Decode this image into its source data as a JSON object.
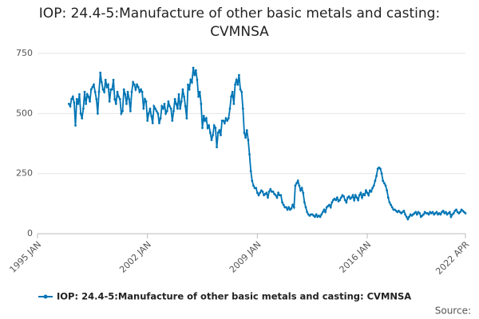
{
  "chart_data": {
    "type": "line",
    "title": "IOP: 24.4-5:Manufacture of other basic metals and casting: CVMNSA",
    "source": "Source:",
    "xlim": [
      "1995 JAN",
      "2022 APR"
    ],
    "xticks": [
      "1995 JAN",
      "2002 JAN",
      "2009 JAN",
      "2016 JAN",
      "2022 APR"
    ],
    "ylim": [
      0,
      750
    ],
    "yticks": [
      0,
      250,
      500,
      750
    ],
    "grid": true,
    "x": [
      "1997 JAN",
      "1997 FEB",
      "1997 MAR",
      "1997 APR",
      "1997 MAY",
      "1997 JUN",
      "1997 JUL",
      "1997 AUG",
      "1997 SEP",
      "1997 OCT",
      "1997 NOV",
      "1997 DEC",
      "1998 JAN",
      "1998 FEB",
      "1998 MAR",
      "1998 APR",
      "1998 MAY",
      "1998 JUN",
      "1998 JUL",
      "1998 AUG",
      "1998 SEP",
      "1998 OCT",
      "1998 NOV",
      "1998 DEC",
      "1999 JAN",
      "1999 FEB",
      "1999 MAR",
      "1999 APR",
      "1999 MAY",
      "1999 JUN",
      "1999 JUL",
      "1999 AUG",
      "1999 SEP",
      "1999 OCT",
      "1999 NOV",
      "1999 DEC",
      "2000 JAN",
      "2000 FEB",
      "2000 MAR",
      "2000 APR",
      "2000 MAY",
      "2000 JUN",
      "2000 JUL",
      "2000 AUG",
      "2000 SEP",
      "2000 OCT",
      "2000 NOV",
      "2000 DEC",
      "2001 JAN",
      "2001 FEB",
      "2001 MAR",
      "2001 APR",
      "2001 MAY",
      "2001 JUN",
      "2001 JUL",
      "2001 AUG",
      "2001 SEP",
      "2001 OCT",
      "2001 NOV",
      "2001 DEC",
      "2002 JAN",
      "2002 FEB",
      "2002 MAR",
      "2002 APR",
      "2002 MAY",
      "2002 JUN",
      "2002 JUL",
      "2002 AUG",
      "2002 SEP",
      "2002 OCT",
      "2002 NOV",
      "2002 DEC",
      "2003 JAN",
      "2003 FEB",
      "2003 MAR",
      "2003 APR",
      "2003 MAY",
      "2003 JUN",
      "2003 JUL",
      "2003 AUG",
      "2003 SEP",
      "2003 OCT",
      "2003 NOV",
      "2003 DEC",
      "2004 JAN",
      "2004 FEB",
      "2004 MAR",
      "2004 APR",
      "2004 MAY",
      "2004 JUN",
      "2004 JUL",
      "2004 AUG",
      "2004 SEP",
      "2004 OCT",
      "2004 NOV",
      "2004 DEC",
      "2005 JAN",
      "2005 FEB",
      "2005 MAR",
      "2005 APR",
      "2005 MAY",
      "2005 JUN",
      "2005 JUL",
      "2005 AUG",
      "2005 SEP",
      "2005 OCT",
      "2005 NOV",
      "2005 DEC",
      "2006 JAN",
      "2006 FEB",
      "2006 MAR",
      "2006 APR",
      "2006 MAY",
      "2006 JUN",
      "2006 JUL",
      "2006 AUG",
      "2006 SEP",
      "2006 OCT",
      "2006 NOV",
      "2006 DEC",
      "2007 JAN",
      "2007 FEB",
      "2007 MAR",
      "2007 APR",
      "2007 MAY",
      "2007 JUN",
      "2007 JUL",
      "2007 AUG",
      "2007 SEP",
      "2007 OCT",
      "2007 NOV",
      "2007 DEC",
      "2008 JAN",
      "2008 FEB",
      "2008 MAR",
      "2008 APR",
      "2008 MAY",
      "2008 JUN",
      "2008 JUL",
      "2008 AUG",
      "2008 SEP",
      "2008 OCT",
      "2008 NOV",
      "2008 DEC",
      "2009 JAN",
      "2009 FEB",
      "2009 MAR",
      "2009 APR",
      "2009 MAY",
      "2009 JUN",
      "2009 JUL",
      "2009 AUG",
      "2009 SEP",
      "2009 OCT",
      "2009 NOV",
      "2009 DEC",
      "2010 JAN",
      "2010 FEB",
      "2010 MAR",
      "2010 APR",
      "2010 MAY",
      "2010 JUN",
      "2010 JUL",
      "2010 AUG",
      "2010 SEP",
      "2010 OCT",
      "2010 NOV",
      "2010 DEC",
      "2011 JAN",
      "2011 FEB",
      "2011 MAR",
      "2011 APR",
      "2011 MAY",
      "2011 JUN",
      "2011 JUL",
      "2011 AUG",
      "2011 SEP",
      "2011 OCT",
      "2011 NOV",
      "2011 DEC",
      "2012 JAN",
      "2012 FEB",
      "2012 MAR",
      "2012 APR",
      "2012 MAY",
      "2012 JUN",
      "2012 JUL",
      "2012 AUG",
      "2012 SEP",
      "2012 OCT",
      "2012 NOV",
      "2012 DEC",
      "2013 JAN",
      "2013 FEB",
      "2013 MAR",
      "2013 APR",
      "2013 MAY",
      "2013 JUN",
      "2013 JUL",
      "2013 AUG",
      "2013 SEP",
      "2013 OCT",
      "2013 NOV",
      "2013 DEC",
      "2014 JAN",
      "2014 FEB",
      "2014 MAR",
      "2014 APR",
      "2014 MAY",
      "2014 JUN",
      "2014 JUL",
      "2014 AUG",
      "2014 SEP",
      "2014 OCT",
      "2014 NOV",
      "2014 DEC",
      "2015 JAN",
      "2015 FEB",
      "2015 MAR",
      "2015 APR",
      "2015 MAY",
      "2015 JUN",
      "2015 JUL",
      "2015 AUG",
      "2015 SEP",
      "2015 OCT",
      "2015 NOV",
      "2015 DEC",
      "2016 JAN",
      "2016 FEB",
      "2016 MAR",
      "2016 APR",
      "2016 MAY",
      "2016 JUN",
      "2016 JUL",
      "2016 AUG",
      "2016 SEP",
      "2016 OCT",
      "2016 NOV",
      "2016 DEC",
      "2017 JAN",
      "2017 FEB",
      "2017 MAR",
      "2017 APR",
      "2017 MAY",
      "2017 JUN",
      "2017 JUL",
      "2017 AUG",
      "2017 SEP",
      "2017 OCT",
      "2017 NOV",
      "2017 DEC",
      "2018 JAN",
      "2018 FEB",
      "2018 MAR",
      "2018 APR",
      "2018 MAY",
      "2018 JUN",
      "2018 JUL",
      "2018 AUG",
      "2018 SEP",
      "2018 OCT",
      "2018 NOV",
      "2018 DEC",
      "2019 JAN",
      "2019 FEB",
      "2019 MAR",
      "2019 APR",
      "2019 MAY",
      "2019 JUN",
      "2019 JUL",
      "2019 AUG",
      "2019 SEP",
      "2019 OCT",
      "2019 NOV",
      "2019 DEC",
      "2020 JAN",
      "2020 FEB",
      "2020 MAR",
      "2020 APR",
      "2020 MAY",
      "2020 JUN",
      "2020 JUL",
      "2020 AUG",
      "2020 SEP",
      "2020 OCT",
      "2020 NOV",
      "2020 DEC",
      "2021 JAN",
      "2021 FEB",
      "2021 MAR",
      "2021 APR",
      "2021 MAY",
      "2021 JUN",
      "2021 JUL",
      "2021 AUG",
      "2021 SEP",
      "2021 OCT",
      "2021 NOV",
      "2021 DEC",
      "2022 JAN",
      "2022 FEB",
      "2022 MAR",
      "2022 APR"
    ],
    "series": [
      {
        "name": "IOP: 24.4-5:Manufacture of other basic metals and casting: CVMNSA",
        "color": "#0075b4",
        "values": [
          540,
          530,
          560,
          570,
          545,
          450,
          560,
          540,
          580,
          500,
          480,
          520,
          590,
          540,
          580,
          570,
          550,
          600,
          610,
          620,
          590,
          560,
          500,
          590,
          670,
          630,
          600,
          590,
          640,
          610,
          620,
          550,
          600,
          600,
          640,
          560,
          540,
          590,
          570,
          560,
          500,
          510,
          600,
          580,
          540,
          590,
          560,
          510,
          590,
          630,
          620,
          600,
          620,
          610,
          590,
          600,
          590,
          520,
          560,
          550,
          470,
          500,
          520,
          490,
          460,
          530,
          520,
          510,
          500,
          460,
          480,
          530,
          520,
          540,
          500,
          510,
          550,
          530,
          520,
          470,
          510,
          560,
          540,
          520,
          580,
          520,
          550,
          600,
          570,
          530,
          480,
          620,
          600,
          640,
          630,
          690,
          660,
          680,
          640,
          570,
          590,
          540,
          440,
          490,
          470,
          480,
          440,
          450,
          420,
          390,
          410,
          450,
          440,
          360,
          420,
          430,
          410,
          470,
          470,
          460,
          480,
          470,
          480,
          520,
          570,
          590,
          540,
          620,
          640,
          620,
          660,
          600,
          590,
          520,
          420,
          400,
          430,
          390,
          330,
          260,
          220,
          200,
          190,
          190,
          170,
          160,
          170,
          180,
          175,
          160,
          165,
          170,
          150,
          175,
          185,
          175,
          175,
          165,
          160,
          150,
          170,
          160,
          160,
          130,
          120,
          110,
          110,
          100,
          110,
          100,
          105,
          120,
          110,
          200,
          210,
          220,
          200,
          180,
          190,
          170,
          130,
          110,
          90,
          80,
          75,
          80,
          80,
          75,
          70,
          80,
          70,
          75,
          70,
          80,
          90,
          100,
          90,
          110,
          115,
          120,
          110,
          130,
          140,
          145,
          140,
          150,
          135,
          140,
          150,
          160,
          155,
          140,
          130,
          150,
          155,
          145,
          150,
          160,
          140,
          160,
          150,
          140,
          160,
          170,
          150,
          165,
          160,
          180,
          170,
          160,
          180,
          175,
          190,
          200,
          220,
          240,
          270,
          275,
          270,
          250,
          220,
          210,
          200,
          180,
          150,
          130,
          120,
          110,
          100,
          100,
          95,
          90,
          95,
          90,
          85,
          90,
          95,
          80,
          70,
          60,
          70,
          80,
          75,
          80,
          85,
          90,
          80,
          90,
          85,
          70,
          75,
          80,
          90,
          85,
          85,
          80,
          90,
          85,
          90,
          80,
          85,
          90,
          80,
          85,
          80,
          90,
          95,
          85,
          90,
          80,
          85,
          90,
          70,
          80,
          85,
          95,
          100,
          90,
          85,
          90,
          100,
          95,
          90,
          85
        ]
      }
    ]
  }
}
